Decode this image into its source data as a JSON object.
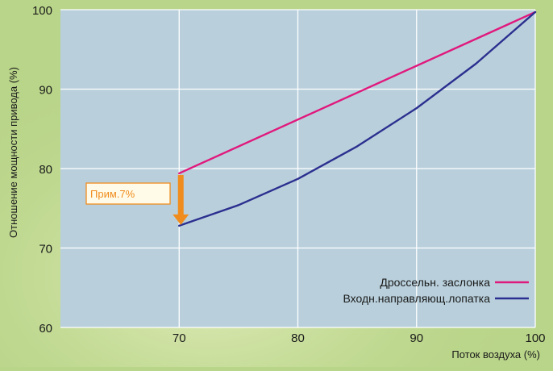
{
  "chart_data": {
    "type": "line",
    "xlabel": "Поток воздуха (%)",
    "ylabel": "Отношение мощности привода (%)",
    "xlim": [
      60,
      100
    ],
    "ylim": [
      60,
      100
    ],
    "x_ticks": [
      70,
      80,
      90,
      100
    ],
    "y_ticks": [
      60,
      70,
      80,
      90,
      100
    ],
    "grid": true,
    "legend_position": "bottom-right",
    "series": [
      {
        "name": "Дроссельн. заслонка",
        "color": "#e0197d",
        "x": [
          70,
          100
        ],
        "y": [
          79.4,
          99.7
        ]
      },
      {
        "name": "Входн.направляющ.лопатка",
        "color": "#2b2f8f",
        "x": [
          70,
          75,
          80,
          85,
          90,
          95,
          100
        ],
        "y": [
          72.8,
          75.4,
          78.7,
          82.8,
          87.6,
          93.2,
          99.7
        ]
      }
    ],
    "annotation": {
      "text": "Прим.7%",
      "x": 70,
      "y_from": 79.4,
      "y_to": 72.8,
      "color": "#f08c1e"
    }
  }
}
